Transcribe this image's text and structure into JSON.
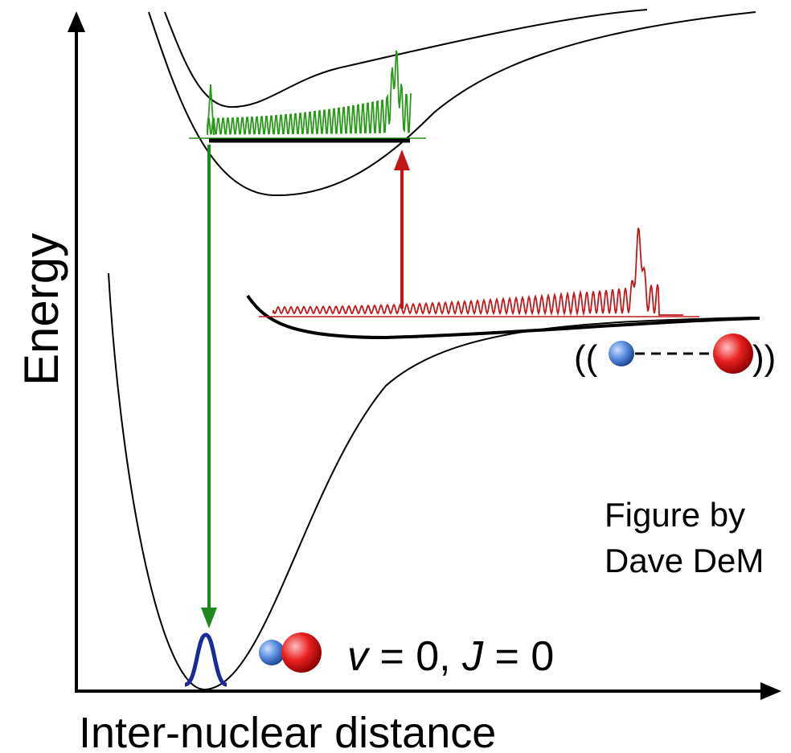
{
  "axes": {
    "y_label": "Energy",
    "x_label": "Inter-nuclear distance"
  },
  "state_label": {
    "v": "v",
    "v_eq": " = 0, ",
    "j": "J",
    "j_eq": " = 0"
  },
  "dissociated": {
    "left": "((",
    "right": "))"
  },
  "credit": {
    "line1": "Figure by",
    "line2": "Dave DeM"
  }
}
